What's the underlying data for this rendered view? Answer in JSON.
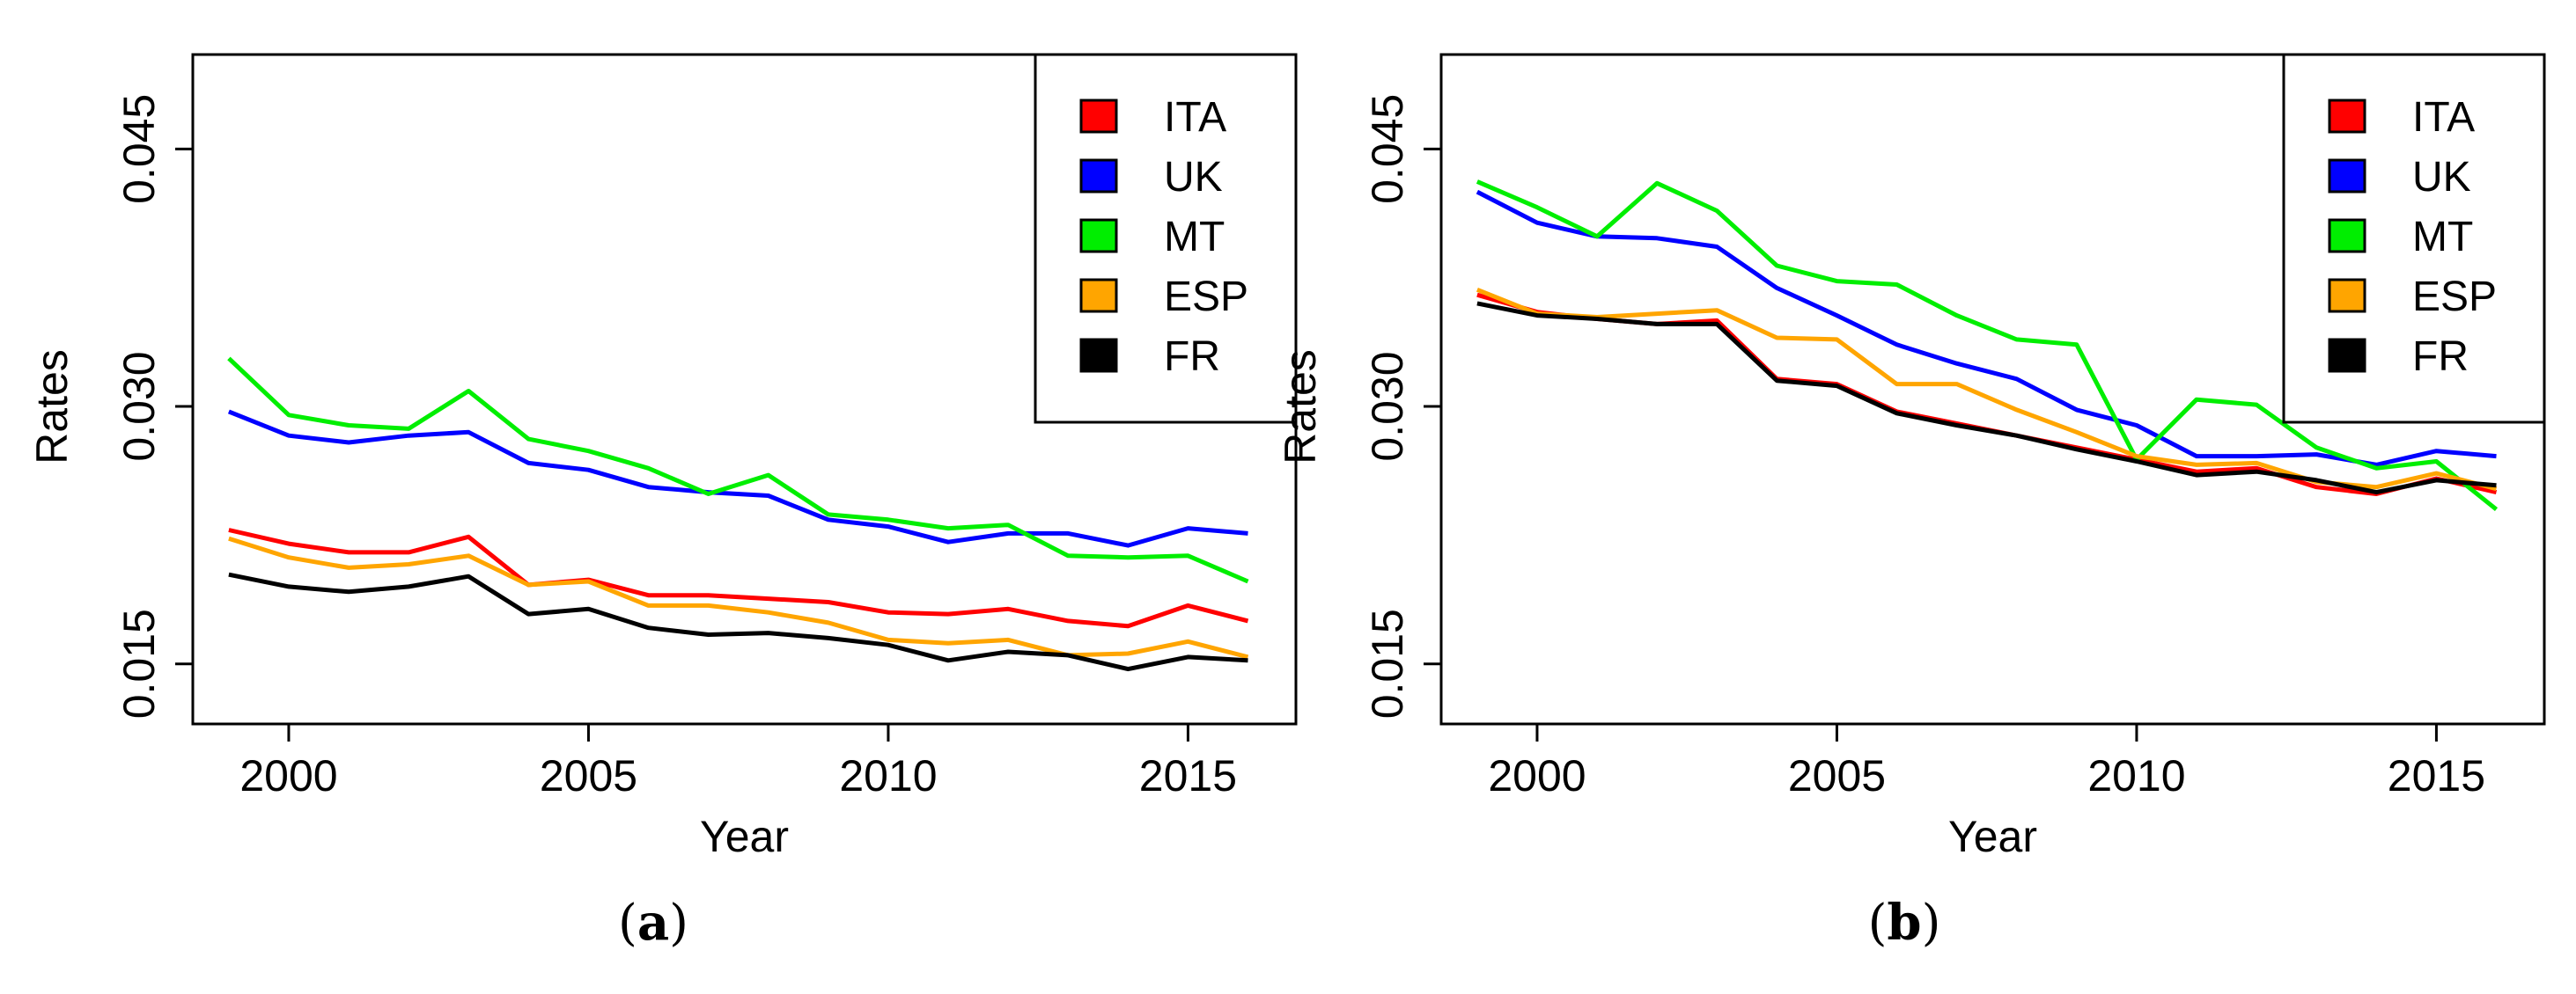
{
  "chart_data": [
    {
      "type": "line",
      "panel_label": "a",
      "title": "",
      "xlabel": "Year",
      "ylabel": "Rates",
      "xlim": [
        1998.4,
        2016.8
      ],
      "ylim": [
        0.0115,
        0.0505
      ],
      "xticks": [
        2000,
        2005,
        2010,
        2015
      ],
      "xtick_labels": [
        "2000",
        "2005",
        "2010",
        "2015"
      ],
      "yticks": [
        0.015,
        0.03,
        0.045
      ],
      "ytick_labels": [
        "0.015",
        "0.030",
        "0.045"
      ],
      "grid": false,
      "legend_position": "top-right",
      "x": [
        1999,
        2000,
        2001,
        2002,
        2003,
        2004,
        2005,
        2006,
        2007,
        2008,
        2009,
        2010,
        2011,
        2012,
        2013,
        2014,
        2015,
        2016
      ],
      "series": [
        {
          "name": "ITA",
          "color": "#ff0000",
          "values": [
            0.0228,
            0.022,
            0.0215,
            0.0215,
            0.0224,
            0.0196,
            0.0199,
            0.019,
            0.019,
            0.0188,
            0.0186,
            0.018,
            0.0179,
            0.0182,
            0.0175,
            0.0172,
            0.0184,
            0.0175
          ]
        },
        {
          "name": "UK",
          "color": "#0000ff",
          "values": [
            0.0297,
            0.0283,
            0.0279,
            0.0283,
            0.0285,
            0.0267,
            0.0263,
            0.0253,
            0.025,
            0.0248,
            0.0234,
            0.023,
            0.0221,
            0.0226,
            0.0226,
            0.0219,
            0.0229,
            0.0226
          ]
        },
        {
          "name": "MT",
          "color": "#00ee00",
          "values": [
            0.0328,
            0.0295,
            0.0289,
            0.0287,
            0.0309,
            0.0281,
            0.0274,
            0.0264,
            0.0249,
            0.026,
            0.0237,
            0.0234,
            0.0229,
            0.0231,
            0.0213,
            0.0212,
            0.0213,
            0.0198
          ]
        },
        {
          "name": "ESP",
          "color": "#ffa500",
          "values": [
            0.0223,
            0.0212,
            0.0206,
            0.0208,
            0.0213,
            0.0196,
            0.0198,
            0.0184,
            0.0184,
            0.018,
            0.0174,
            0.0164,
            0.0162,
            0.0164,
            0.0155,
            0.0156,
            0.0163,
            0.0154
          ]
        },
        {
          "name": "FR",
          "color": "#000000",
          "values": [
            0.0202,
            0.0195,
            0.0192,
            0.0195,
            0.0201,
            0.0179,
            0.0182,
            0.0171,
            0.0167,
            0.0168,
            0.0165,
            0.0161,
            0.0152,
            0.0157,
            0.0155,
            0.0147,
            0.0154,
            0.0152
          ]
        }
      ]
    },
    {
      "type": "line",
      "panel_label": "b",
      "title": "",
      "xlabel": "Year",
      "ylabel": "Rates",
      "xlim": [
        1998.4,
        2016.8
      ],
      "ylim": [
        0.0115,
        0.0505
      ],
      "xticks": [
        2000,
        2005,
        2010,
        2015
      ],
      "xtick_labels": [
        "2000",
        "2005",
        "2010",
        "2015"
      ],
      "yticks": [
        0.015,
        0.03,
        0.045
      ],
      "ytick_labels": [
        "0.015",
        "0.030",
        "0.045"
      ],
      "grid": false,
      "legend_position": "top-right",
      "x": [
        1999,
        2000,
        2001,
        2002,
        2003,
        2004,
        2005,
        2006,
        2007,
        2008,
        2009,
        2010,
        2011,
        2012,
        2013,
        2014,
        2015,
        2016
      ],
      "series": [
        {
          "name": "ITA",
          "color": "#ff0000",
          "values": [
            0.0365,
            0.0355,
            0.0351,
            0.0348,
            0.035,
            0.0316,
            0.0313,
            0.0297,
            0.029,
            0.0283,
            0.0276,
            0.0269,
            0.0262,
            0.0264,
            0.0253,
            0.0249,
            0.0258,
            0.025
          ]
        },
        {
          "name": "UK",
          "color": "#0000ff",
          "values": [
            0.0425,
            0.0407,
            0.0399,
            0.0398,
            0.0393,
            0.0369,
            0.0353,
            0.0336,
            0.0325,
            0.0316,
            0.0298,
            0.0289,
            0.0271,
            0.0271,
            0.0272,
            0.0266,
            0.0274,
            0.0271
          ]
        },
        {
          "name": "MT",
          "color": "#00ee00",
          "values": [
            0.0431,
            0.0416,
            0.0399,
            0.043,
            0.0414,
            0.0382,
            0.0373,
            0.0371,
            0.0353,
            0.0339,
            0.0336,
            0.0269,
            0.0304,
            0.0301,
            0.0276,
            0.0264,
            0.0268,
            0.024
          ]
        },
        {
          "name": "ESP",
          "color": "#ffa500",
          "values": [
            0.0368,
            0.0354,
            0.0352,
            0.0354,
            0.0356,
            0.034,
            0.0339,
            0.0313,
            0.0313,
            0.0298,
            0.0285,
            0.0271,
            0.0266,
            0.0267,
            0.0256,
            0.0253,
            0.0261,
            0.0252
          ]
        },
        {
          "name": "FR",
          "color": "#000000",
          "values": [
            0.036,
            0.0353,
            0.0351,
            0.0348,
            0.0348,
            0.0315,
            0.0312,
            0.0296,
            0.0289,
            0.0283,
            0.0275,
            0.0268,
            0.026,
            0.0262,
            0.0257,
            0.025,
            0.0257,
            0.0254
          ]
        }
      ]
    }
  ]
}
